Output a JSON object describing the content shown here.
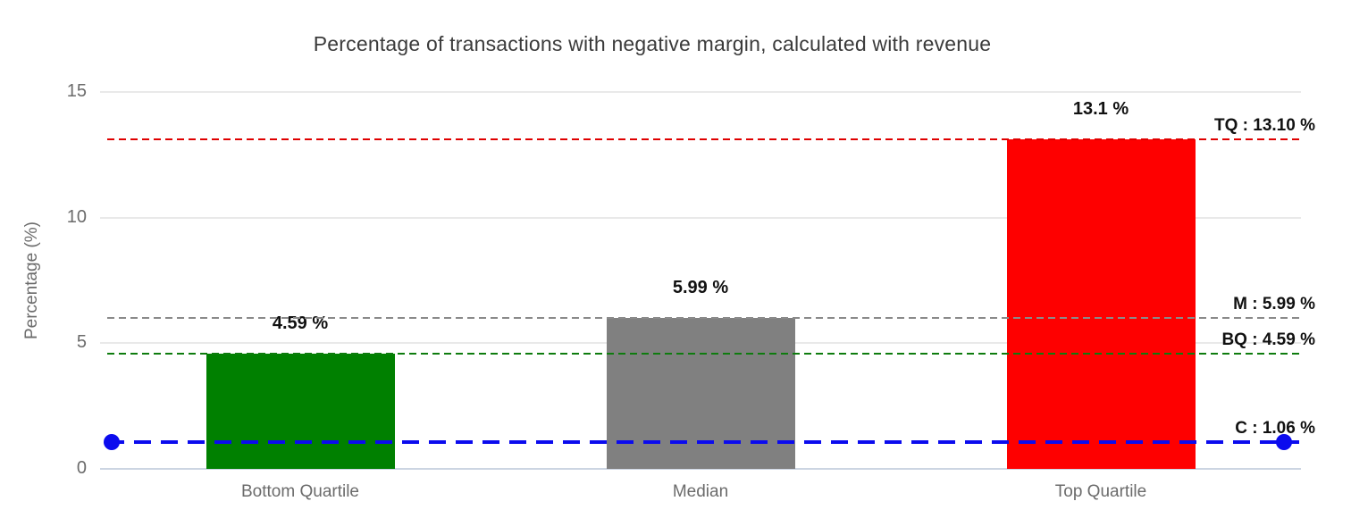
{
  "title": "Percentage of transactions with negative margin, calculated with revenue",
  "chart_data": {
    "type": "bar",
    "title": "Percentage of transactions with negative margin, calculated with revenue",
    "categories": [
      "Bottom Quartile",
      "Median",
      "Top Quartile"
    ],
    "values": [
      4.59,
      5.99,
      13.1
    ],
    "bar_labels": [
      "4.59 %",
      "5.99 %",
      "13.1 %"
    ],
    "bar_colors": [
      "#008000",
      "#808080",
      "#fe0000"
    ],
    "xlabel": "",
    "ylabel": "Percentage (%)",
    "ylim": [
      0,
      15
    ],
    "yticks": [
      0,
      5,
      10,
      15
    ],
    "grid": true,
    "legend": "none",
    "reference_lines": [
      {
        "id": "TQ",
        "label": "TQ : 13.10 %",
        "value": 13.1,
        "color": "#df0000",
        "style": "dashed",
        "thickness": "thin",
        "end_markers": false
      },
      {
        "id": "M",
        "label": "M : 5.99 %",
        "value": 5.99,
        "color": "#8a8a8a",
        "style": "dashed",
        "thickness": "thin",
        "end_markers": false
      },
      {
        "id": "BQ",
        "label": "BQ : 4.59 %",
        "value": 4.59,
        "color": "#0e7c0e",
        "style": "dashed",
        "thickness": "thin",
        "end_markers": false
      },
      {
        "id": "C",
        "label": "C : 1.06 %",
        "value": 1.06,
        "color": "#0b0bee",
        "style": "dashed",
        "thickness": "thick",
        "end_markers": true
      }
    ]
  }
}
